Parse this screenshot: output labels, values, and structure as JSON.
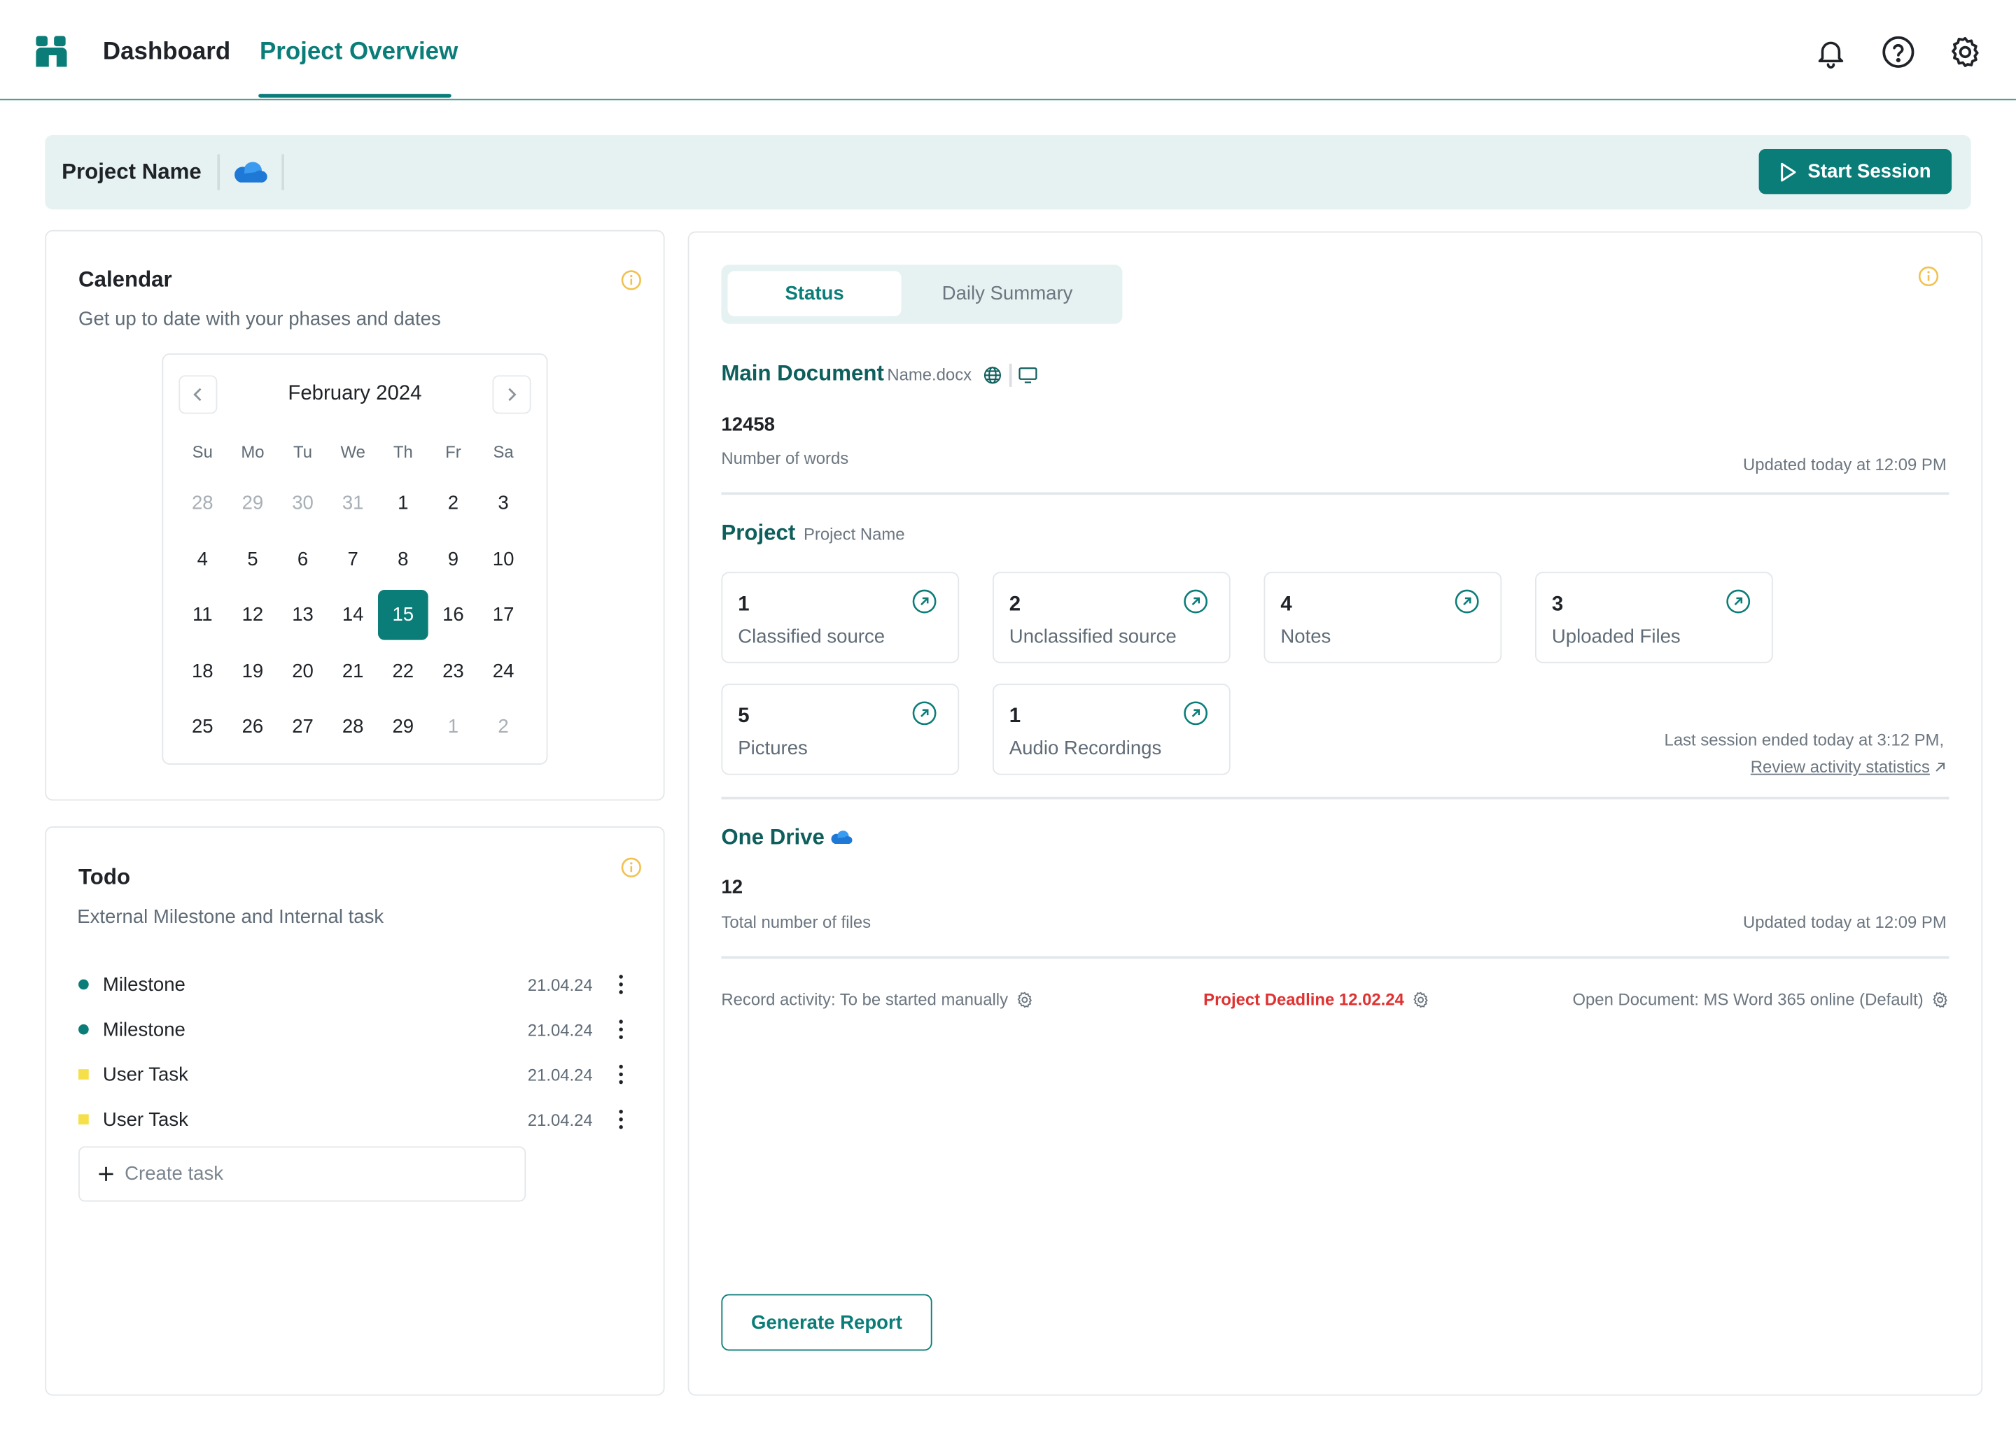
{
  "nav": {
    "dashboard": "Dashboard",
    "project_overview": "Project Overview"
  },
  "header": {
    "project_name": "Project Name",
    "start_session": "Start Session"
  },
  "calendar": {
    "title": "Calendar",
    "subtitle": "Get up to date with your phases and dates",
    "month": "February 2024",
    "weekdays": [
      "Su",
      "Mo",
      "Tu",
      "We",
      "Th",
      "Fr",
      "Sa"
    ],
    "weeks": [
      [
        "28",
        "29",
        "30",
        "31",
        "1",
        "2",
        "3"
      ],
      [
        "4",
        "5",
        "6",
        "7",
        "8",
        "9",
        "10"
      ],
      [
        "11",
        "12",
        "13",
        "14",
        "15",
        "16",
        "17"
      ],
      [
        "18",
        "19",
        "20",
        "21",
        "22",
        "23",
        "24"
      ],
      [
        "25",
        "26",
        "27",
        "28",
        "29",
        "1",
        "2"
      ]
    ],
    "selected": "15"
  },
  "todo": {
    "title": "Todo",
    "subtitle": "External Milestone and Internal task",
    "items": [
      {
        "label": "Milestone",
        "date": "21.04.24",
        "type": "milestone"
      },
      {
        "label": "Milestone",
        "date": "21.04.24",
        "type": "milestone"
      },
      {
        "label": "User Task",
        "date": "21.04.24",
        "type": "task"
      },
      {
        "label": "User Task",
        "date": "21.04.24",
        "type": "task"
      }
    ],
    "create_task": "Create task"
  },
  "tabs": {
    "status": "Status",
    "daily_summary": "Daily Summary"
  },
  "main_document": {
    "title": "Main Document",
    "file": "Name.docx",
    "count": "12458",
    "count_label": "Number of words",
    "updated": "Updated today at 12:09 PM"
  },
  "project": {
    "title": "Project",
    "name": "Project Name",
    "stats": [
      {
        "n": "1",
        "label": "Classified source"
      },
      {
        "n": "2",
        "label": "Unclassified source"
      },
      {
        "n": "4",
        "label": "Notes"
      },
      {
        "n": "3",
        "label": "Uploaded Files"
      },
      {
        "n": "5",
        "label": "Pictures"
      },
      {
        "n": "1",
        "label": "Audio Recordings"
      }
    ],
    "last_session": "Last session ended today at 3:12 PM,",
    "review_link": "Review activity statistics"
  },
  "onedrive": {
    "title": "One Drive",
    "count": "12",
    "count_label": "Total number of files",
    "updated": "Updated today at 12:09 PM"
  },
  "footer": {
    "record_activity": "Record activity: To be started manually",
    "deadline": "Project Deadline 12.02.24",
    "open_document": "Open Document: MS Word 365 online (Default)",
    "generate_report": "Generate Report"
  },
  "colors": {
    "accent": "#0b7d79",
    "milestone_dot": "#0b7d79",
    "task_marker": "#f5e04a",
    "deadline": "#e03131",
    "info": "#f2c14e",
    "onedrive": "#1e78d6"
  }
}
